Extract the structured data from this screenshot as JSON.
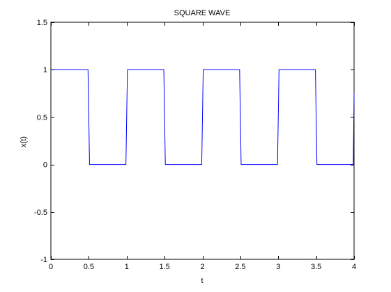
{
  "chart_data": {
    "type": "line",
    "title": "SQUARE WAVE",
    "xlabel": "t",
    "ylabel": "x(t)",
    "xlim": [
      0,
      4
    ],
    "ylim": [
      -1,
      1.5
    ],
    "xticks": [
      0,
      0.5,
      1,
      1.5,
      2,
      2.5,
      3,
      3.5,
      4
    ],
    "xtick_labels": [
      "0",
      "0.5",
      "1",
      "1.5",
      "2",
      "2.5",
      "3",
      "3.5",
      "4"
    ],
    "yticks": [
      -1,
      -0.5,
      0,
      0.5,
      1,
      1.5
    ],
    "ytick_labels": [
      "-1",
      "-0.5",
      "0",
      "0.5",
      "1",
      "1.5"
    ],
    "grid": false,
    "series": [
      {
        "color": "#0000ff",
        "x": [
          0,
          0.49,
          0.5,
          0.51,
          0.99,
          1.0,
          1.01,
          1.49,
          1.5,
          1.51,
          1.99,
          2.0,
          2.01,
          2.49,
          2.5,
          2.51,
          2.99,
          3.0,
          3.01,
          3.49,
          3.5,
          3.51,
          3.99,
          4.0
        ],
        "y": [
          1,
          1,
          0.5,
          0,
          0,
          0.5,
          1,
          1,
          0.5,
          0,
          0,
          0.5,
          1,
          1,
          0.5,
          0,
          0,
          0.5,
          1,
          1,
          0.5,
          0,
          0,
          0.75
        ]
      }
    ]
  }
}
